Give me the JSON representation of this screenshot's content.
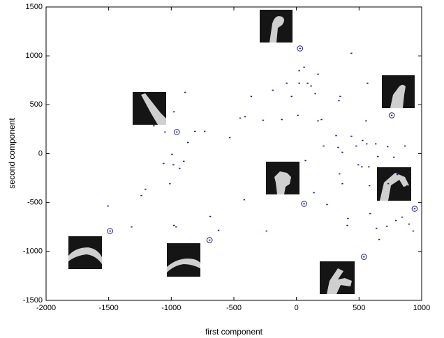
{
  "chart_data": {
    "type": "scatter",
    "xlabel": "first component",
    "ylabel": "second component",
    "xlim": [
      -2000,
      1000
    ],
    "ylim": [
      -1500,
      1500
    ],
    "xticks": [
      -2000,
      -1500,
      -1000,
      -500,
      0,
      500,
      1000
    ],
    "yticks": [
      -1500,
      -1000,
      -500,
      0,
      500,
      1000,
      1500
    ],
    "grid": false,
    "series": [
      {
        "color": "#1a1a8c",
        "marker": "dot",
        "x": [
          439,
          22,
          61,
          172,
          22,
          89,
          -78,
          -39,
          117,
          -189,
          -361,
          150,
          350,
          567,
          -889,
          -978,
          -1139,
          -1050,
          -811,
          -733,
          -533,
          -450,
          -411,
          -867,
          -994,
          -1061,
          -900,
          -933,
          -983,
          -1011,
          -1206,
          -1239,
          -1317,
          -1506,
          -978,
          -961,
          -689,
          -622,
          -417,
          -239,
          -267,
          -117,
          11,
          172,
          200,
          339,
          556,
          72,
          217,
          317,
          333,
          367,
          344,
          367,
          439,
          478,
          494,
          522,
          528,
          561,
          578,
          583,
          650,
          633,
          728,
          778,
          867,
          906,
          806,
          733,
          883,
          844,
          900,
          794,
          722,
          933,
          589,
          639,
          661,
          411,
          406,
          244,
          139
        ],
        "values": [
          1027,
          848,
          884,
          813,
          720,
          720,
          720,
          585,
          692,
          649,
          585,
          613,
          585,
          720,
          627,
          428,
          285,
          221,
          228,
          228,
          164,
          364,
          378,
          114,
          -7,
          -100,
          -78,
          -150,
          -114,
          -307,
          -364,
          -428,
          -749,
          -535,
          -734,
          -749,
          -642,
          -784,
          -471,
          -791,
          342,
          349,
          392,
          335,
          349,
          542,
          335,
          -71,
          78,
          185,
          64,
          14,
          -207,
          -307,
          178,
          78,
          -114,
          -135,
          135,
          100,
          -135,
          -328,
          -29,
          100,
          71,
          -36,
          78,
          -185,
          -214,
          -307,
          -328,
          -649,
          -720,
          -684,
          -742,
          -791,
          -613,
          -763,
          -877,
          -663,
          -734,
          -520,
          -399
        ]
      },
      {
        "color": "#1a1a8c",
        "marker": "circled",
        "x": [
          28,
          761,
          -956,
          61,
          944,
          -1489,
          -694,
          539
        ],
        "values": [
          1076,
          392,
          221,
          -513,
          -563,
          -791,
          -884,
          -1055
        ]
      }
    ]
  }
}
